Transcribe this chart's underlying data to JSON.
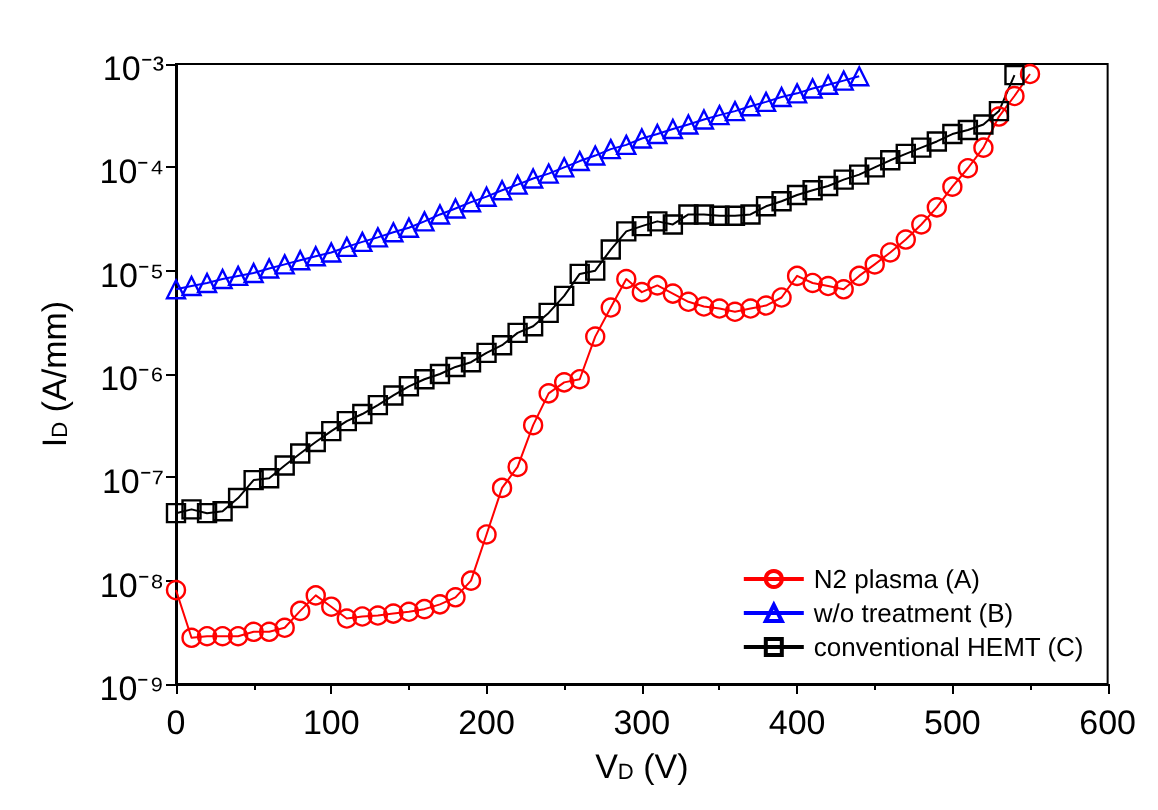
{
  "chart_data": {
    "type": "line",
    "xlabel": "V$_{D}$ (V)",
    "ylabel": "I$_{D}$ (A/mm)",
    "xlim": [
      0,
      600
    ],
    "xticks": [
      0,
      100,
      200,
      300,
      400,
      500,
      600
    ],
    "ylim": [
      1e-09,
      0.001
    ],
    "log": "y",
    "yticks": [
      {
        "value": 1e-09,
        "label": "10⁻⁹"
      },
      {
        "value": 1e-08,
        "label": "10⁻⁸"
      },
      {
        "value": 1e-07,
        "label": "10⁻⁷"
      },
      {
        "value": 1e-06,
        "label": "10⁻⁶"
      },
      {
        "value": 1e-05,
        "label": "10⁻⁵"
      },
      {
        "value": 0.0001,
        "label": "10⁻⁴"
      },
      {
        "value": 0.001,
        "label": "10⁻³"
      }
    ],
    "legend": "bottom right",
    "grid": false,
    "line_style": "solid",
    "series": [
      {
        "name": "N2 plasma (A)",
        "color": "#ff0000",
        "marker": "circle",
        "x": [
          0,
          10,
          20,
          30,
          40,
          50,
          60,
          70,
          80,
          90,
          100,
          110,
          120,
          130,
          140,
          150,
          160,
          170,
          180,
          190,
          200,
          210,
          220,
          230,
          240,
          250,
          260,
          270,
          280,
          290,
          300,
          310,
          320,
          330,
          340,
          350,
          360,
          370,
          380,
          390,
          400,
          410,
          420,
          430,
          440,
          450,
          460,
          470,
          480,
          490,
          500,
          510,
          520,
          530,
          540,
          550
        ],
        "values": [
          8.1e-09,
          2.8e-09,
          2.9e-09,
          2.9e-09,
          2.9e-09,
          3.2e-09,
          3.2e-09,
          3.5e-09,
          5.1e-09,
          7.2e-09,
          5.6e-09,
          4.3e-09,
          4.5e-09,
          4.6e-09,
          4.8e-09,
          5e-09,
          5.3e-09,
          5.9e-09,
          6.9e-09,
          1e-08,
          2.8e-08,
          7.9e-08,
          1.26e-07,
          3.2e-07,
          6.5e-07,
          8.3e-07,
          8.9e-07,
          2.3e-06,
          4.4e-06,
          8.3e-06,
          6.2e-06,
          7.2e-06,
          6e-06,
          5e-06,
          4.5e-06,
          4.3e-06,
          4e-06,
          4.3e-06,
          4.6e-06,
          5.5e-06,
          8.9e-06,
          7.6e-06,
          7.1e-06,
          6.6e-06,
          8.9e-06,
          1.15e-05,
          1.5e-05,
          2e-05,
          2.8e-05,
          4.1e-05,
          6.5e-05,
          9.8e-05,
          0.000155,
          0.00031,
          0.00049,
          0.0008
        ]
      },
      {
        "name": "w/o treatment (B)",
        "color": "#0000ff",
        "marker": "triangle",
        "x": [
          0,
          10,
          20,
          30,
          40,
          50,
          60,
          70,
          80,
          90,
          100,
          110,
          120,
          130,
          140,
          150,
          160,
          170,
          180,
          190,
          200,
          210,
          220,
          230,
          240,
          250,
          260,
          270,
          280,
          290,
          300,
          310,
          320,
          330,
          340,
          350,
          360,
          370,
          380,
          390,
          400,
          410,
          420,
          430,
          440
        ],
        "values": [
          6.6e-06,
          7.1e-06,
          7.6e-06,
          8.3e-06,
          8.9e-06,
          9.5e-06,
          1.05e-05,
          1.15e-05,
          1.26e-05,
          1.38e-05,
          1.5e-05,
          1.7e-05,
          1.9e-05,
          2.1e-05,
          2.35e-05,
          2.6e-05,
          3e-05,
          3.5e-05,
          4e-05,
          4.6e-05,
          5.2e-05,
          6e-05,
          6.8e-05,
          7.8e-05,
          8.7e-05,
          0.0001,
          0.000115,
          0.00013,
          0.00015,
          0.000165,
          0.00019,
          0.00021,
          0.000235,
          0.00026,
          0.00029,
          0.00032,
          0.00035,
          0.00039,
          0.00043,
          0.00048,
          0.00052,
          0.00058,
          0.00063,
          0.00069,
          0.00076
        ]
      },
      {
        "name": "conventional HEMT (C)",
        "color": "#000000",
        "marker": "square",
        "x": [
          0,
          10,
          20,
          30,
          40,
          50,
          60,
          70,
          80,
          90,
          100,
          110,
          120,
          130,
          140,
          150,
          160,
          170,
          180,
          190,
          200,
          210,
          220,
          230,
          240,
          250,
          260,
          270,
          280,
          290,
          300,
          310,
          320,
          330,
          340,
          350,
          360,
          370,
          380,
          390,
          400,
          410,
          420,
          430,
          440,
          450,
          460,
          470,
          480,
          490,
          500,
          510,
          520,
          530,
          540
        ],
        "values": [
          4.5e-08,
          4.9e-08,
          4.5e-08,
          4.7e-08,
          6.3e-08,
          9.4e-08,
          9.8e-08,
          1.3e-07,
          1.7e-07,
          2.2e-07,
          2.8e-07,
          3.5e-07,
          4.1e-07,
          5e-07,
          6.2e-07,
          7.6e-07,
          8.9e-07,
          1e-06,
          1.17e-06,
          1.3e-06,
          1.6e-06,
          1.9e-06,
          2.5e-06,
          2.9e-06,
          3.9e-06,
          5.7e-06,
          9.3e-06,
          1e-05,
          1.6e-05,
          2.4e-05,
          2.7e-05,
          3e-05,
          2.8e-05,
          3.5e-05,
          3.5e-05,
          3.4e-05,
          3.4e-05,
          3.5e-05,
          4.2e-05,
          4.7e-05,
          5.4e-05,
          6e-05,
          6.6e-05,
          7.6e-05,
          8.5e-05,
          0.0001,
          0.000117,
          0.000135,
          0.000155,
          0.000178,
          0.00021,
          0.00023,
          0.00026,
          0.00035,
          0.00078
        ]
      }
    ]
  }
}
